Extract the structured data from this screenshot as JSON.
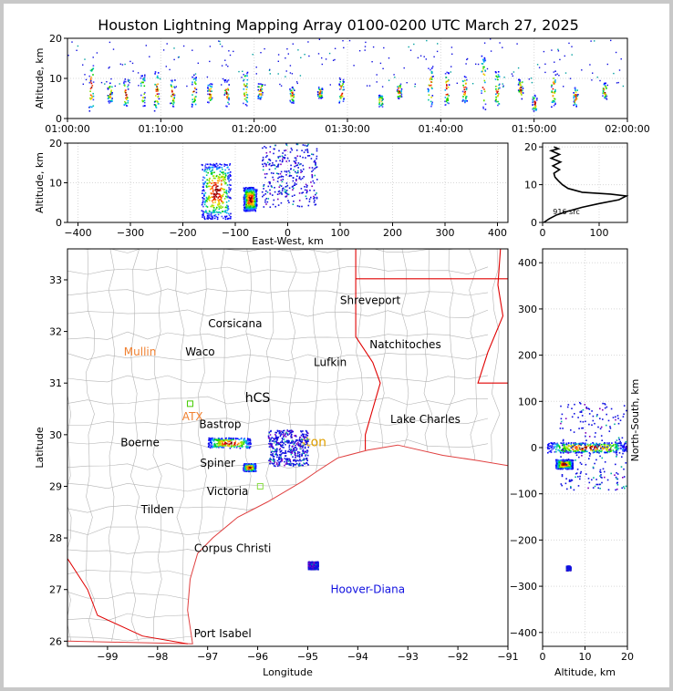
{
  "title": "Houston Lightning Mapping Array 0100-0200 UTC March 27, 2025",
  "colors": {
    "axis": "#000000",
    "grid": "#d8d8d8",
    "county": "#b4b4b4",
    "state": "#e00000",
    "coast": "#e04040",
    "accent_orange": "#f08030",
    "accent_gold": "#e0a000",
    "accent_blue": "#1010e0"
  },
  "chart_data": [
    {
      "type": "scatter",
      "panel": "time-altitude",
      "ylabel": "Altitude, km",
      "xlabel": "",
      "ylim": [
        0,
        20
      ],
      "xlim": [
        "01:00:00",
        "02:00:00"
      ],
      "x_ticks": [
        "01:00:00",
        "01:10:00",
        "01:20:00",
        "01:30:00",
        "01:40:00",
        "01:50:00",
        "02:00:00"
      ],
      "y_ticks": [
        "0",
        "10",
        "20"
      ],
      "clusters": [
        {
          "time_min": 2.5,
          "alt_min": 2,
          "alt_max": 14
        },
        {
          "time_min": 4.5,
          "alt_min": 4,
          "alt_max": 9
        },
        {
          "time_min": 6.2,
          "alt_min": 3,
          "alt_max": 10
        },
        {
          "time_min": 8.0,
          "alt_min": 3,
          "alt_max": 11
        },
        {
          "time_min": 9.5,
          "alt_min": 2,
          "alt_max": 12
        },
        {
          "time_min": 11.2,
          "alt_min": 3,
          "alt_max": 10
        },
        {
          "time_min": 13.5,
          "alt_min": 3,
          "alt_max": 11
        },
        {
          "time_min": 15.2,
          "alt_min": 4,
          "alt_max": 9
        },
        {
          "time_min": 17.0,
          "alt_min": 3,
          "alt_max": 10
        },
        {
          "time_min": 19.0,
          "alt_min": 3,
          "alt_max": 12
        },
        {
          "time_min": 20.6,
          "alt_min": 5,
          "alt_max": 9
        },
        {
          "time_min": 24.0,
          "alt_min": 4,
          "alt_max": 8
        },
        {
          "time_min": 27.0,
          "alt_min": 5,
          "alt_max": 8
        },
        {
          "time_min": 29.3,
          "alt_min": 4,
          "alt_max": 10
        },
        {
          "time_min": 33.5,
          "alt_min": 3,
          "alt_max": 6
        },
        {
          "time_min": 35.5,
          "alt_min": 5,
          "alt_max": 9
        },
        {
          "time_min": 38.8,
          "alt_min": 3,
          "alt_max": 13
        },
        {
          "time_min": 40.6,
          "alt_min": 3,
          "alt_max": 12
        },
        {
          "time_min": 42.5,
          "alt_min": 4,
          "alt_max": 11
        },
        {
          "time_min": 44.5,
          "alt_min": 2,
          "alt_max": 16
        },
        {
          "time_min": 46.0,
          "alt_min": 3,
          "alt_max": 12
        },
        {
          "time_min": 48.5,
          "alt_min": 5,
          "alt_max": 10
        },
        {
          "time_min": 50.0,
          "alt_min": 2,
          "alt_max": 6
        },
        {
          "time_min": 52.0,
          "alt_min": 3,
          "alt_max": 12
        },
        {
          "time_min": 54.4,
          "alt_min": 3,
          "alt_max": 8
        },
        {
          "time_min": 57.5,
          "alt_min": 5,
          "alt_max": 9
        }
      ]
    },
    {
      "type": "scatter",
      "panel": "east-west-altitude",
      "xlabel": "East-West, km",
      "ylabel": "Altitude, km",
      "xlim": [
        -420,
        420
      ],
      "ylim": [
        0,
        20
      ],
      "x_ticks": [
        "−400",
        "−300",
        "−200",
        "−100",
        "0",
        "100",
        "200",
        "300",
        "400"
      ],
      "y_ticks": [
        "0",
        "10",
        "20"
      ],
      "clusters": [
        {
          "x_min": -165,
          "x_max": -110,
          "alt_min": 1,
          "alt_max": 15,
          "dense": true
        },
        {
          "x_min": -85,
          "x_max": -60,
          "alt_min": 3,
          "alt_max": 9,
          "dense": true
        },
        {
          "x_min": -50,
          "x_max": 55,
          "alt_min": 4,
          "alt_max": 20,
          "dense": false
        }
      ]
    },
    {
      "type": "line",
      "panel": "altitude-histogram",
      "xlim": [
        0,
        150
      ],
      "ylim": [
        0,
        21
      ],
      "x_ticks": [
        "0",
        "100"
      ],
      "y_ticks": [
        "0",
        "10",
        "20"
      ],
      "annotation": "916 src",
      "profile": [
        [
          2,
          0
        ],
        [
          12,
          1
        ],
        [
          25,
          2
        ],
        [
          45,
          3
        ],
        [
          70,
          4
        ],
        [
          100,
          5
        ],
        [
          135,
          6
        ],
        [
          148,
          7
        ],
        [
          120,
          7.5
        ],
        [
          70,
          8
        ],
        [
          45,
          9
        ],
        [
          35,
          10
        ],
        [
          28,
          11
        ],
        [
          22,
          12
        ],
        [
          20,
          13
        ],
        [
          30,
          14
        ],
        [
          18,
          15
        ],
        [
          32,
          16
        ],
        [
          15,
          17
        ],
        [
          30,
          18
        ],
        [
          15,
          19
        ],
        [
          28,
          19.5
        ],
        [
          20,
          20
        ]
      ]
    },
    {
      "type": "map",
      "panel": "plan-view",
      "xlabel": "Longitude",
      "ylabel": "Latitude",
      "xlim": [
        -99.8,
        -91.0
      ],
      "ylim": [
        25.9,
        33.6
      ],
      "x_ticks": [
        "−99",
        "−98",
        "−97",
        "−96",
        "−95",
        "−94",
        "−93",
        "−92",
        "−91"
      ],
      "y_ticks": [
        "26",
        "27",
        "28",
        "29",
        "30",
        "31",
        "32",
        "33"
      ],
      "cities": [
        {
          "name": "Shreveport",
          "lon": -93.75,
          "lat": 32.6,
          "color": "#000000"
        },
        {
          "name": "Corsicana",
          "lon": -96.45,
          "lat": 32.15,
          "color": "#000000"
        },
        {
          "name": "Natchitoches",
          "lon": -93.05,
          "lat": 31.75,
          "color": "#000000"
        },
        {
          "name": "Mullin",
          "lon": -98.35,
          "lat": 31.6,
          "color": "#f08030"
        },
        {
          "name": "Waco",
          "lon": -97.15,
          "lat": 31.6,
          "color": "#000000"
        },
        {
          "name": "Lufkin",
          "lon": -94.55,
          "lat": 31.4,
          "color": "#000000"
        },
        {
          "name": "hCS",
          "lon": -96.0,
          "lat": 30.7,
          "color": "#000000"
        },
        {
          "name": "ATX",
          "lon": -97.3,
          "lat": 30.35,
          "color": "#f08030"
        },
        {
          "name": "Bastrop",
          "lon": -96.75,
          "lat": 30.2,
          "color": "#000000"
        },
        {
          "name": "Lake Charles",
          "lon": -92.65,
          "lat": 30.3,
          "color": "#000000"
        },
        {
          "name": "Boerne",
          "lon": -98.35,
          "lat": 29.85,
          "color": "#000000"
        },
        {
          "name": "ston",
          "lon": -94.9,
          "lat": 29.85,
          "color": "#e0a000"
        },
        {
          "name": "Spiner",
          "lon": -96.8,
          "lat": 29.45,
          "color": "#000000"
        },
        {
          "name": "Victoria",
          "lon": -96.6,
          "lat": 28.9,
          "color": "#000000"
        },
        {
          "name": "Tilden",
          "lon": -98.0,
          "lat": 28.55,
          "color": "#000000"
        },
        {
          "name": "Corpus Christi",
          "lon": -96.5,
          "lat": 27.8,
          "color": "#000000"
        },
        {
          "name": "Hoover-Diana",
          "lon": -93.8,
          "lat": 27.0,
          "color": "#1010e0"
        },
        {
          "name": "Port Isabel",
          "lon": -96.7,
          "lat": 26.15,
          "color": "#000000"
        }
      ],
      "clusters": [
        {
          "lon_min": -97.0,
          "lon_max": -96.15,
          "lat_min": 29.75,
          "lat_max": 29.95,
          "dense": true
        },
        {
          "lon_min": -96.3,
          "lon_max": -96.05,
          "lat_min": 29.3,
          "lat_max": 29.45,
          "dense": true
        },
        {
          "lon_min": -95.8,
          "lon_max": -95.0,
          "lat_min": 29.4,
          "lat_max": 30.1,
          "dense": false
        },
        {
          "lon_min": -95.0,
          "lon_max": -94.8,
          "lat_min": 27.4,
          "lat_max": 27.55,
          "dense": false
        }
      ],
      "stations": [
        {
          "lon": -97.35,
          "lat": 30.6,
          "color": "#44cc00"
        },
        {
          "lon": -95.95,
          "lat": 29.0,
          "color": "#88dd44"
        }
      ]
    },
    {
      "type": "scatter",
      "panel": "north-south-altitude",
      "xlabel": "Altitude, km",
      "ylabel": "North-South, km",
      "xlim": [
        0,
        20
      ],
      "ylim": [
        -430,
        430
      ],
      "x_ticks": [
        "0",
        "10",
        "20"
      ],
      "y_ticks": [
        "−400",
        "−300",
        "−200",
        "−100",
        "0",
        "100",
        "200",
        "300",
        "400"
      ],
      "clusters": [
        {
          "alt_min": 1,
          "alt_max": 20,
          "ns_min": -10,
          "ns_max": 12,
          "dense": true
        },
        {
          "alt_min": 3,
          "alt_max": 7,
          "ns_min": -45,
          "ns_max": -25,
          "dense": true
        },
        {
          "alt_min": 4,
          "alt_max": 20,
          "ns_min": -90,
          "ns_max": 100,
          "dense": false
        },
        {
          "alt_min": 5.5,
          "alt_max": 6.5,
          "ns_min": -265,
          "ns_max": -255,
          "dense": false
        }
      ]
    }
  ]
}
